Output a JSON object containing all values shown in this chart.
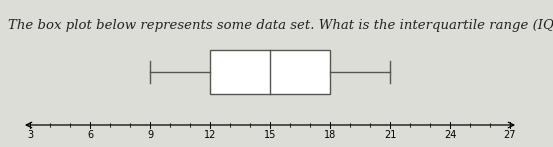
{
  "title_text": "The box plot below represents some data set. What is the interquartile range (IQR) of the data",
  "title_fontsize": 9.5,
  "whisker_low": 9,
  "q1": 12,
  "median": 15,
  "q3": 18,
  "whisker_high": 21,
  "xmin": 3,
  "xmax": 27,
  "xticks": [
    3,
    6,
    9,
    12,
    15,
    18,
    21,
    24,
    27
  ],
  "box_color": "white",
  "box_edgecolor": "#555555",
  "line_color": "#555555",
  "background_color": "#ddddd8",
  "linewidth": 1.0,
  "figwidth": 5.53,
  "figheight": 1.47,
  "dpi": 100
}
